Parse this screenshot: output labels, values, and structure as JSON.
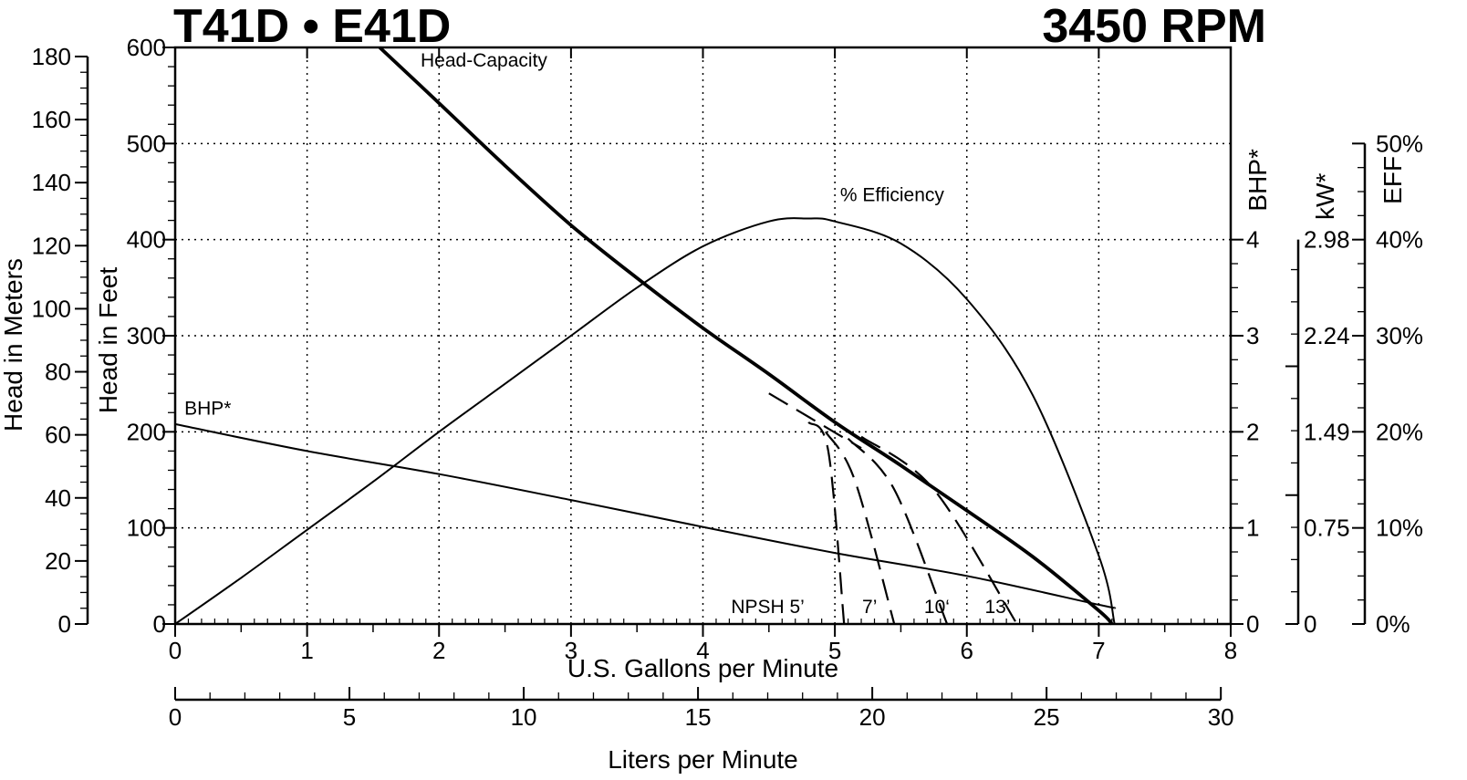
{
  "header": {
    "model": "T41D • E41D",
    "speed": "3450 RPM"
  },
  "chart_data": {
    "type": "line",
    "grid": true,
    "x_axis": {
      "label": "U.S. Gallons per Minute",
      "range": [
        0,
        8
      ],
      "ticks": [
        "0",
        "1",
        "2",
        "3",
        "4",
        "5",
        "6",
        "7",
        "8"
      ]
    },
    "x2_axis": {
      "label": "Liters per Minute",
      "range": [
        0,
        30
      ],
      "ticks": [
        "0",
        "5",
        "10",
        "15",
        "20",
        "25",
        "30"
      ]
    },
    "y_axis": {
      "label": "Head in Feet",
      "range": [
        0,
        600
      ],
      "ticks": [
        "0",
        "100",
        "200",
        "300",
        "400",
        "500",
        "600"
      ]
    },
    "y_meters_axis": {
      "label": "Head in Meters",
      "range": [
        0,
        180
      ],
      "ticks": [
        "0",
        "20",
        "40",
        "60",
        "80",
        "100",
        "120",
        "140",
        "160",
        "180"
      ]
    },
    "bhp_axis": {
      "label": "BHP*",
      "range": [
        0,
        4
      ],
      "ticks": [
        "0",
        "1",
        "2",
        "3",
        "4"
      ]
    },
    "kw_axis": {
      "label": "kW*",
      "ticks": [
        {
          "label": "0",
          "bhp": 0
        },
        {
          "label": "0.75",
          "bhp": 1
        },
        {
          "label": "1.49",
          "bhp": 2
        },
        {
          "label": "2.24",
          "bhp": 3
        },
        {
          "label": "2.98",
          "bhp": 4
        }
      ]
    },
    "eff_axis": {
      "label": "EFF",
      "range": [
        0,
        50
      ],
      "ticks": [
        "0%",
        "10%",
        "20%",
        "30%",
        "40%",
        "50%"
      ]
    },
    "series": [
      {
        "name": "Head-Capacity",
        "axis": "feet",
        "x": [
          1.55,
          2.0,
          2.5,
          3.0,
          3.5,
          4.0,
          4.5,
          5.0,
          5.5,
          6.0,
          6.5,
          7.0,
          7.1
        ],
        "y": [
          600,
          542,
          477,
          415,
          360,
          308,
          260,
          210,
          165,
          118,
          70,
          14,
          0
        ]
      },
      {
        "name": "% Efficiency",
        "axis": "eff",
        "x": [
          0,
          0.5,
          1.0,
          1.5,
          2.0,
          2.5,
          3.0,
          3.5,
          4.0,
          4.5,
          4.8,
          5.0,
          5.5,
          6.0,
          6.5,
          7.0,
          7.12
        ],
        "y": [
          0,
          4.8,
          9.8,
          14.8,
          20,
          25,
          30,
          35,
          39.3,
          41.9,
          42.2,
          41.9,
          39.6,
          33.8,
          23.8,
          7.1,
          0
        ]
      },
      {
        "name": "BHP*",
        "axis": "bhp",
        "x": [
          0,
          1,
          2,
          3,
          4,
          5,
          6,
          7,
          7.12
        ],
        "y": [
          2.08,
          1.8,
          1.56,
          1.29,
          1.01,
          0.74,
          0.5,
          0.2,
          0.17
        ]
      }
    ],
    "npsh_curves": [
      {
        "label": "NPSH 5’",
        "x": [
          4.8,
          4.95,
          5.07
        ],
        "y": [
          210,
          180,
          0
        ]
      },
      {
        "label": "7’",
        "x": [
          4.93,
          5.15,
          5.45
        ],
        "y": [
          200,
          150,
          0
        ]
      },
      {
        "label": "10‘",
        "x": [
          5.1,
          5.45,
          5.85
        ],
        "y": [
          193,
          140,
          0
        ]
      },
      {
        "label": "13’",
        "x": [
          5.2,
          5.75,
          6.38
        ],
        "y": [
          195,
          140,
          0
        ]
      }
    ],
    "npsh_extension": {
      "x": [
        4.5,
        5.2
      ],
      "y": [
        240,
        183
      ]
    },
    "annotations": [
      {
        "text": "Head-Capacity",
        "x": 1.86,
        "y": 580
      },
      {
        "text": "% Efficiency",
        "x": 5.04,
        "y": 44.0
      },
      {
        "text": "BHP*",
        "x": 0.07,
        "y": 2.18
      }
    ]
  }
}
